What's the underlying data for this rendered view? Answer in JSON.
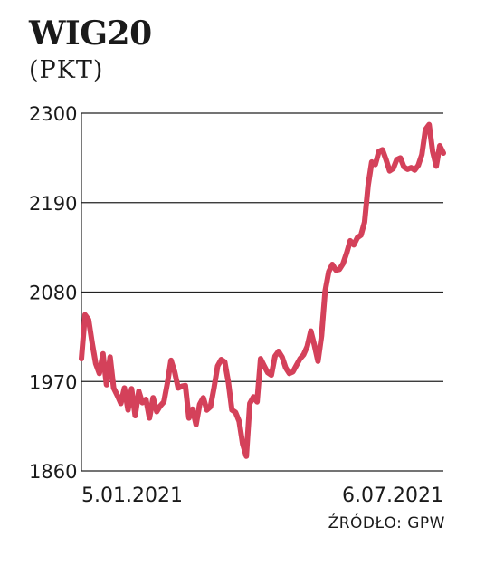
{
  "header": {
    "title": "WIG20",
    "subtitle": "(PKT)"
  },
  "footer": {
    "source": "ŹRÓDŁO: GPW"
  },
  "chart_data": {
    "type": "line",
    "title": "WIG20",
    "ylabel": "(PKT)",
    "xlabel": "",
    "ylim": [
      1860,
      2300
    ],
    "yticks": [
      1860,
      1970,
      2080,
      2190,
      2300
    ],
    "x_start_label": "5.01.2021",
    "x_end_label": "6.07.2021",
    "grid": true,
    "color": "#d4415a",
    "series": [
      {
        "name": "",
        "values": [
          1998,
          2052,
          2046,
          2017,
          1992,
          1980,
          2004,
          1966,
          2000,
          1962,
          1953,
          1943,
          1962,
          1935,
          1961,
          1928,
          1958,
          1944,
          1948,
          1925,
          1950,
          1933,
          1940,
          1945,
          1968,
          1996,
          1982,
          1962,
          1964,
          1965,
          1925,
          1936,
          1917,
          1942,
          1950,
          1935,
          1939,
          1962,
          1989,
          1997,
          1994,
          1969,
          1935,
          1932,
          1921,
          1893,
          1878,
          1943,
          1951,
          1945,
          1998,
          1989,
          1981,
          1978,
          2001,
          2007,
          2000,
          1987,
          1980,
          1982,
          1990,
          1998,
          2003,
          2013,
          2032,
          2015,
          1995,
          2026,
          2081,
          2105,
          2114,
          2107,
          2108,
          2115,
          2128,
          2143,
          2138,
          2147,
          2150,
          2166,
          2211,
          2240,
          2237,
          2253,
          2255,
          2243,
          2229,
          2232,
          2243,
          2245,
          2234,
          2231,
          2233,
          2230,
          2236,
          2249,
          2280,
          2286,
          2253,
          2235,
          2260,
          2251
        ]
      }
    ]
  }
}
